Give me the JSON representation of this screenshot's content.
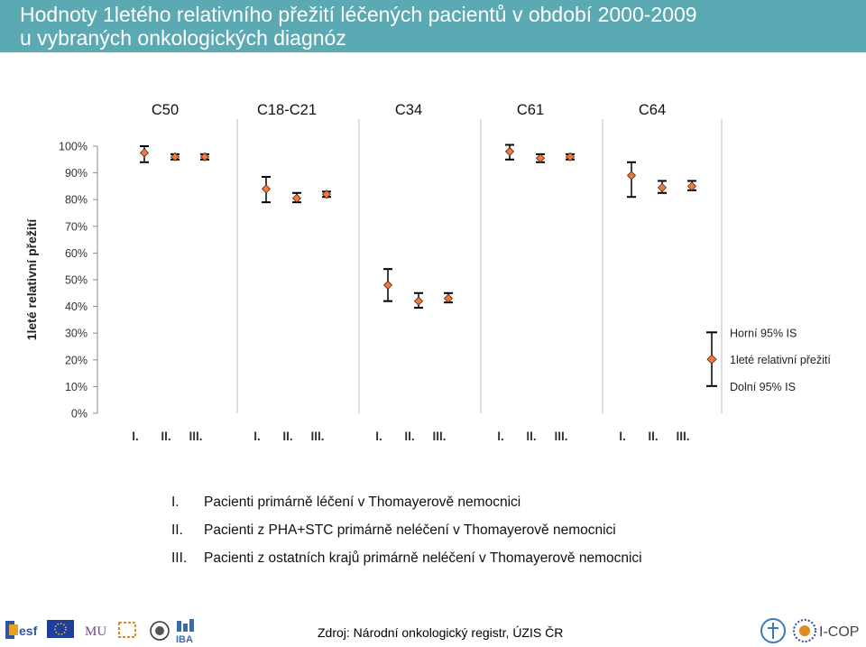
{
  "header": {
    "title_line1": "Hodnoty 1letého relativního přežití léčených pacientů v období 2000-2009",
    "title_line2": "u vybraných onkologických diagnóz"
  },
  "chart_data": {
    "type": "errorbar",
    "ylabel": "1leté relativní přežití",
    "ylim": [
      0,
      100
    ],
    "yticks": [
      "0%",
      "10%",
      "20%",
      "30%",
      "40%",
      "50%",
      "60%",
      "70%",
      "80%",
      "90%",
      "100%"
    ],
    "groups": [
      "C50",
      "C18-C21",
      "C34",
      "C61",
      "C64"
    ],
    "categories": [
      "I.",
      "II.",
      "III."
    ],
    "series": [
      {
        "group": "C50",
        "values": [
          97.5,
          96,
          96
        ],
        "upper": [
          100,
          97,
          97
        ],
        "lower": [
          94,
          95,
          95
        ]
      },
      {
        "group": "C18-C21",
        "values": [
          84,
          80.5,
          82
        ],
        "upper": [
          88.5,
          82.5,
          83
        ],
        "lower": [
          79,
          79,
          81
        ]
      },
      {
        "group": "C34",
        "values": [
          48,
          42,
          43
        ],
        "upper": [
          54,
          45,
          45
        ],
        "lower": [
          42,
          39.5,
          41.5
        ]
      },
      {
        "group": "C61",
        "values": [
          98,
          95.5,
          96
        ],
        "upper": [
          100.5,
          97,
          97
        ],
        "lower": [
          95,
          94,
          95
        ]
      },
      {
        "group": "C64",
        "values": [
          89,
          84.5,
          85
        ],
        "upper": [
          94,
          87,
          87
        ],
        "lower": [
          81,
          82.5,
          83.5
        ]
      }
    ],
    "legend": {
      "upper": "Horní 95% IS",
      "point": "1leté relativní přežití",
      "lower": "Dolní 95% IS",
      "position": "right"
    },
    "grid": false,
    "colors": {
      "marker": "#f07838",
      "marker_edge": "#4a2a1a",
      "errorbar": "#000000",
      "separator": "#c8c8c8"
    }
  },
  "notes": [
    {
      "num": "I.",
      "text": "Pacienti primárně léčení v Thomayerově nemocnici"
    },
    {
      "num": "II.",
      "text": "Pacienti z PHA+STC primárně neléčení v Thomayerově nemocnici"
    },
    {
      "num": "III.",
      "text": "Pacienti z ostatních krajů primárně neléčení v Thomayerově nemocnici"
    }
  ],
  "footer": {
    "source": "Zdroj: Národní onkologický registr, ÚZIS ČR",
    "logos": {
      "esf": "esf",
      "mu": "MU",
      "iba": "IBA",
      "icop": "I-COP"
    }
  }
}
